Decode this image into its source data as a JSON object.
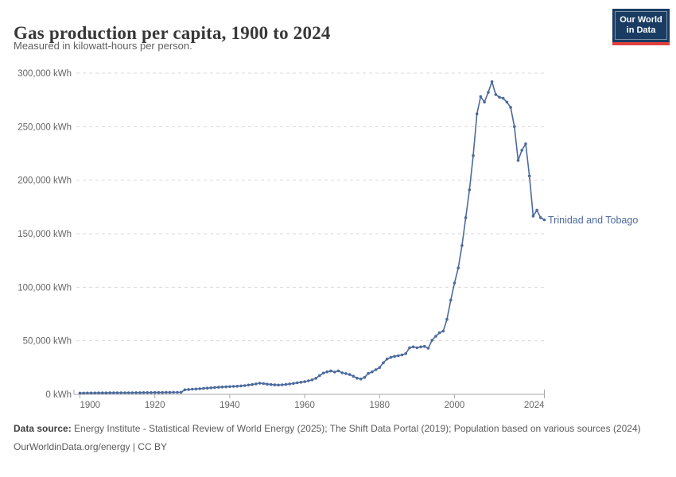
{
  "header": {
    "title": "Gas production per capita, 1900 to 2024",
    "subtitle": "Measured in kilowatt-hours per person.",
    "logo": {
      "line1": "Our World",
      "line2": "in Data",
      "bg_color": "#1A3C63",
      "bar_color": "#E0413D"
    }
  },
  "chart_data": {
    "type": "line",
    "title": "Gas production per capita, 1900 to 2024",
    "subtitle": "Measured in kilowatt-hours per person.",
    "xlabel": "",
    "ylabel": "kilowatt-hours per person",
    "xlim": [
      1900,
      2024
    ],
    "ylim": [
      0,
      300000
    ],
    "grid": "horizontal-dashed",
    "legend_position": "end-of-line",
    "line_color": "#4C6A9C",
    "grid_color": "#d9d9d9",
    "axis_color": "#a8a8a8",
    "tick_label_color": "#666666",
    "x_ticks": [
      {
        "v": 1900,
        "label": "1900"
      },
      {
        "v": 1920,
        "label": "1920"
      },
      {
        "v": 1940,
        "label": "1940"
      },
      {
        "v": 1960,
        "label": "1960"
      },
      {
        "v": 1980,
        "label": "1980"
      },
      {
        "v": 2000,
        "label": "2000"
      },
      {
        "v": 2024,
        "label": "2024"
      }
    ],
    "y_ticks": [
      {
        "v": 0,
        "label": "0 kWh"
      },
      {
        "v": 50000,
        "label": "50,000 kWh"
      },
      {
        "v": 100000,
        "label": "100,000 kWh"
      },
      {
        "v": 150000,
        "label": "150,000 kWh"
      },
      {
        "v": 200000,
        "label": "200,000 kWh"
      },
      {
        "v": 250000,
        "label": "250,000 kWh"
      },
      {
        "v": 300000,
        "label": "300,000 kWh"
      }
    ],
    "series": [
      {
        "name": "Trinidad and Tobago",
        "color": "#4C6A9C",
        "points": [
          [
            1900,
            1200
          ],
          [
            1901,
            1220
          ],
          [
            1902,
            1240
          ],
          [
            1903,
            1260
          ],
          [
            1904,
            1280
          ],
          [
            1905,
            1300
          ],
          [
            1906,
            1330
          ],
          [
            1907,
            1350
          ],
          [
            1908,
            1380
          ],
          [
            1909,
            1400
          ],
          [
            1910,
            1430
          ],
          [
            1911,
            1450
          ],
          [
            1912,
            1480
          ],
          [
            1913,
            1500
          ],
          [
            1914,
            1520
          ],
          [
            1915,
            1550
          ],
          [
            1916,
            1570
          ],
          [
            1917,
            1600
          ],
          [
            1918,
            1620
          ],
          [
            1919,
            1650
          ],
          [
            1920,
            1680
          ],
          [
            1921,
            1700
          ],
          [
            1922,
            1730
          ],
          [
            1923,
            1760
          ],
          [
            1924,
            1790
          ],
          [
            1925,
            1820
          ],
          [
            1926,
            1860
          ],
          [
            1927,
            1900
          ],
          [
            1928,
            4200
          ],
          [
            1929,
            4500
          ],
          [
            1930,
            4800
          ],
          [
            1931,
            5000
          ],
          [
            1932,
            5200
          ],
          [
            1933,
            5500
          ],
          [
            1934,
            5800
          ],
          [
            1935,
            6100
          ],
          [
            1936,
            6400
          ],
          [
            1937,
            6600
          ],
          [
            1938,
            6800
          ],
          [
            1939,
            7000
          ],
          [
            1940,
            7200
          ],
          [
            1941,
            7400
          ],
          [
            1942,
            7600
          ],
          [
            1943,
            7900
          ],
          [
            1944,
            8200
          ],
          [
            1945,
            8700
          ],
          [
            1946,
            9100
          ],
          [
            1947,
            9700
          ],
          [
            1948,
            10400
          ],
          [
            1949,
            10000
          ],
          [
            1950,
            9500
          ],
          [
            1951,
            9100
          ],
          [
            1952,
            8800
          ],
          [
            1953,
            8700
          ],
          [
            1954,
            8900
          ],
          [
            1955,
            9200
          ],
          [
            1956,
            9700
          ],
          [
            1957,
            10200
          ],
          [
            1958,
            10800
          ],
          [
            1959,
            11300
          ],
          [
            1960,
            11800
          ],
          [
            1961,
            12600
          ],
          [
            1962,
            13500
          ],
          [
            1963,
            15000
          ],
          [
            1964,
            17500
          ],
          [
            1965,
            19800
          ],
          [
            1966,
            21000
          ],
          [
            1967,
            21800
          ],
          [
            1968,
            20800
          ],
          [
            1969,
            21900
          ],
          [
            1970,
            20100
          ],
          [
            1971,
            19400
          ],
          [
            1972,
            18500
          ],
          [
            1973,
            16900
          ],
          [
            1974,
            15100
          ],
          [
            1975,
            14300
          ],
          [
            1976,
            15800
          ],
          [
            1977,
            19500
          ],
          [
            1978,
            21000
          ],
          [
            1979,
            23000
          ],
          [
            1980,
            25000
          ],
          [
            1981,
            29500
          ],
          [
            1982,
            33000
          ],
          [
            1983,
            34500
          ],
          [
            1984,
            35500
          ],
          [
            1985,
            36100
          ],
          [
            1986,
            36800
          ],
          [
            1987,
            38000
          ],
          [
            1988,
            43500
          ],
          [
            1989,
            44300
          ],
          [
            1990,
            43500
          ],
          [
            1991,
            44300
          ],
          [
            1992,
            44800
          ],
          [
            1993,
            43100
          ],
          [
            1994,
            50500
          ],
          [
            1995,
            54200
          ],
          [
            1996,
            57500
          ],
          [
            1997,
            59000
          ],
          [
            1998,
            70000
          ],
          [
            1999,
            88000
          ],
          [
            2000,
            104000
          ],
          [
            2001,
            118000
          ],
          [
            2002,
            139000
          ],
          [
            2003,
            165000
          ],
          [
            2004,
            191000
          ],
          [
            2005,
            223000
          ],
          [
            2006,
            262000
          ],
          [
            2007,
            278000
          ],
          [
            2008,
            273000
          ],
          [
            2009,
            282000
          ],
          [
            2010,
            292000
          ],
          [
            2011,
            280000
          ],
          [
            2012,
            277500
          ],
          [
            2013,
            276500
          ],
          [
            2014,
            273000
          ],
          [
            2015,
            268000
          ],
          [
            2016,
            250000
          ],
          [
            2017,
            218500
          ],
          [
            2018,
            228000
          ],
          [
            2019,
            234000
          ],
          [
            2020,
            204000
          ],
          [
            2021,
            166500
          ],
          [
            2022,
            172000
          ],
          [
            2023,
            165000
          ],
          [
            2024,
            163000
          ]
        ]
      }
    ]
  },
  "footer": {
    "source_label": "Data source:",
    "source_text": " Energy Institute - Statistical Review of World Energy (2025); The Shift Data Portal (2019); Population based on various sources (2024)",
    "link_line": "OurWorldinData.org/energy | CC BY"
  }
}
